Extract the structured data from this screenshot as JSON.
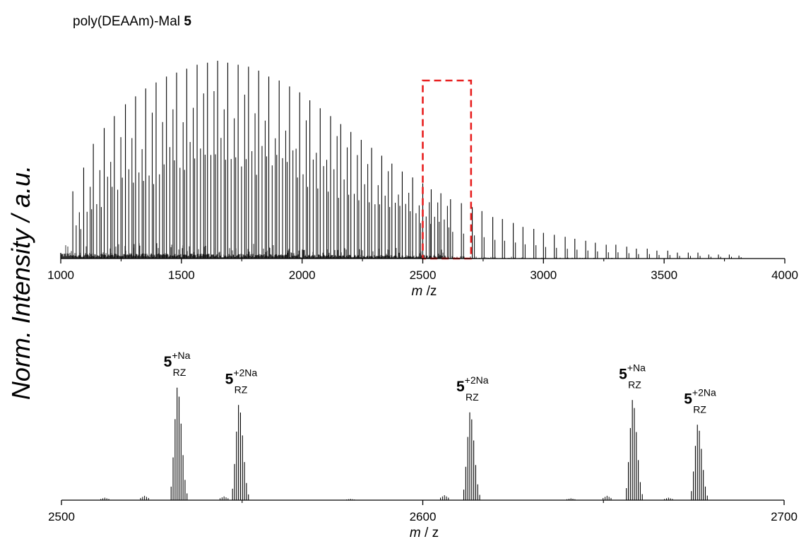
{
  "title": {
    "text": "poly(DEAAm)-Mal ",
    "bold": "5"
  },
  "ylabel": "Norm. Intensity / a.u.",
  "chart_data": [
    {
      "type": "line",
      "name": "overview",
      "xlabel_italic": "m",
      "xlabel_rest": " /z",
      "xlim": [
        1000,
        4000
      ],
      "ylim": [
        0,
        1
      ],
      "xticks": [
        1000,
        1500,
        2000,
        2500,
        3000,
        3500,
        4000
      ],
      "xtick_labels": [
        "1000",
        "1500",
        "2000",
        "2500",
        "3000",
        "3500",
        "4000"
      ],
      "zoom_region": {
        "x": [
          2500,
          2700
        ],
        "color": "#e82020",
        "style": "dashed"
      },
      "major_peaks": {
        "x": [
          1050,
          1095,
          1135,
          1180,
          1222,
          1268,
          1310,
          1352,
          1395,
          1438,
          1480,
          1522,
          1565,
          1608,
          1650,
          1692,
          1735,
          1778,
          1820,
          1862,
          1905,
          1948,
          1990,
          2032,
          2075,
          2118,
          2160,
          2202,
          2245,
          2288,
          2330,
          2372,
          2415,
          2458,
          2500,
          2535,
          2575,
          2615,
          2660,
          2705,
          2745,
          2790,
          2830,
          2875,
          2915,
          2960,
          3000,
          3045,
          3090,
          3130,
          3175,
          3215,
          3260,
          3300,
          3345,
          3385,
          3430,
          3470,
          3515,
          3555,
          3600,
          3640,
          3685,
          3725,
          3770,
          3810
        ],
        "y": [
          0.34,
          0.46,
          0.58,
          0.66,
          0.72,
          0.78,
          0.82,
          0.86,
          0.89,
          0.92,
          0.94,
          0.96,
          0.98,
          0.99,
          1.0,
          0.99,
          0.98,
          0.97,
          0.95,
          0.92,
          0.9,
          0.87,
          0.84,
          0.8,
          0.76,
          0.72,
          0.68,
          0.64,
          0.6,
          0.56,
          0.52,
          0.48,
          0.44,
          0.41,
          0.38,
          0.35,
          0.33,
          0.3,
          0.28,
          0.26,
          0.24,
          0.21,
          0.2,
          0.18,
          0.16,
          0.15,
          0.13,
          0.12,
          0.11,
          0.1,
          0.09,
          0.08,
          0.07,
          0.07,
          0.06,
          0.05,
          0.05,
          0.04,
          0.04,
          0.03,
          0.03,
          0.03,
          0.02,
          0.02,
          0.02,
          0.015
        ]
      }
    },
    {
      "type": "line",
      "name": "zoom",
      "xlabel_italic": "m",
      "xlabel_rest": " / z",
      "xlim": [
        2500,
        2700
      ],
      "ylim": [
        0,
        1
      ],
      "xticks": [
        2500,
        2600,
        2700
      ],
      "xtick_labels": [
        "2500",
        "2600",
        "2700"
      ],
      "isotope_clusters": [
        {
          "center": 2532,
          "height": 0.91,
          "label_main": "5",
          "label_sup": "+Na",
          "label_sub": "RZ"
        },
        {
          "center": 2549,
          "height": 0.77,
          "label_main": "5",
          "label_sup": "+2Na",
          "label_sub": "RZ"
        },
        {
          "center": 2613,
          "height": 0.71,
          "label_main": "5",
          "label_sup": "+2Na",
          "label_sub": "RZ"
        },
        {
          "center": 2658,
          "height": 0.81,
          "label_main": "5",
          "label_sup": "+Na",
          "label_sub": "RZ"
        },
        {
          "center": 2676,
          "height": 0.61,
          "label_main": "5",
          "label_sup": "+2Na",
          "label_sub": "RZ"
        }
      ],
      "minor_clusters": {
        "x": [
          2512,
          2523,
          2545,
          2580,
          2606,
          2641,
          2651,
          2668
        ],
        "y": [
          0.02,
          0.035,
          0.03,
          0.01,
          0.04,
          0.015,
          0.035,
          0.02
        ]
      }
    }
  ]
}
